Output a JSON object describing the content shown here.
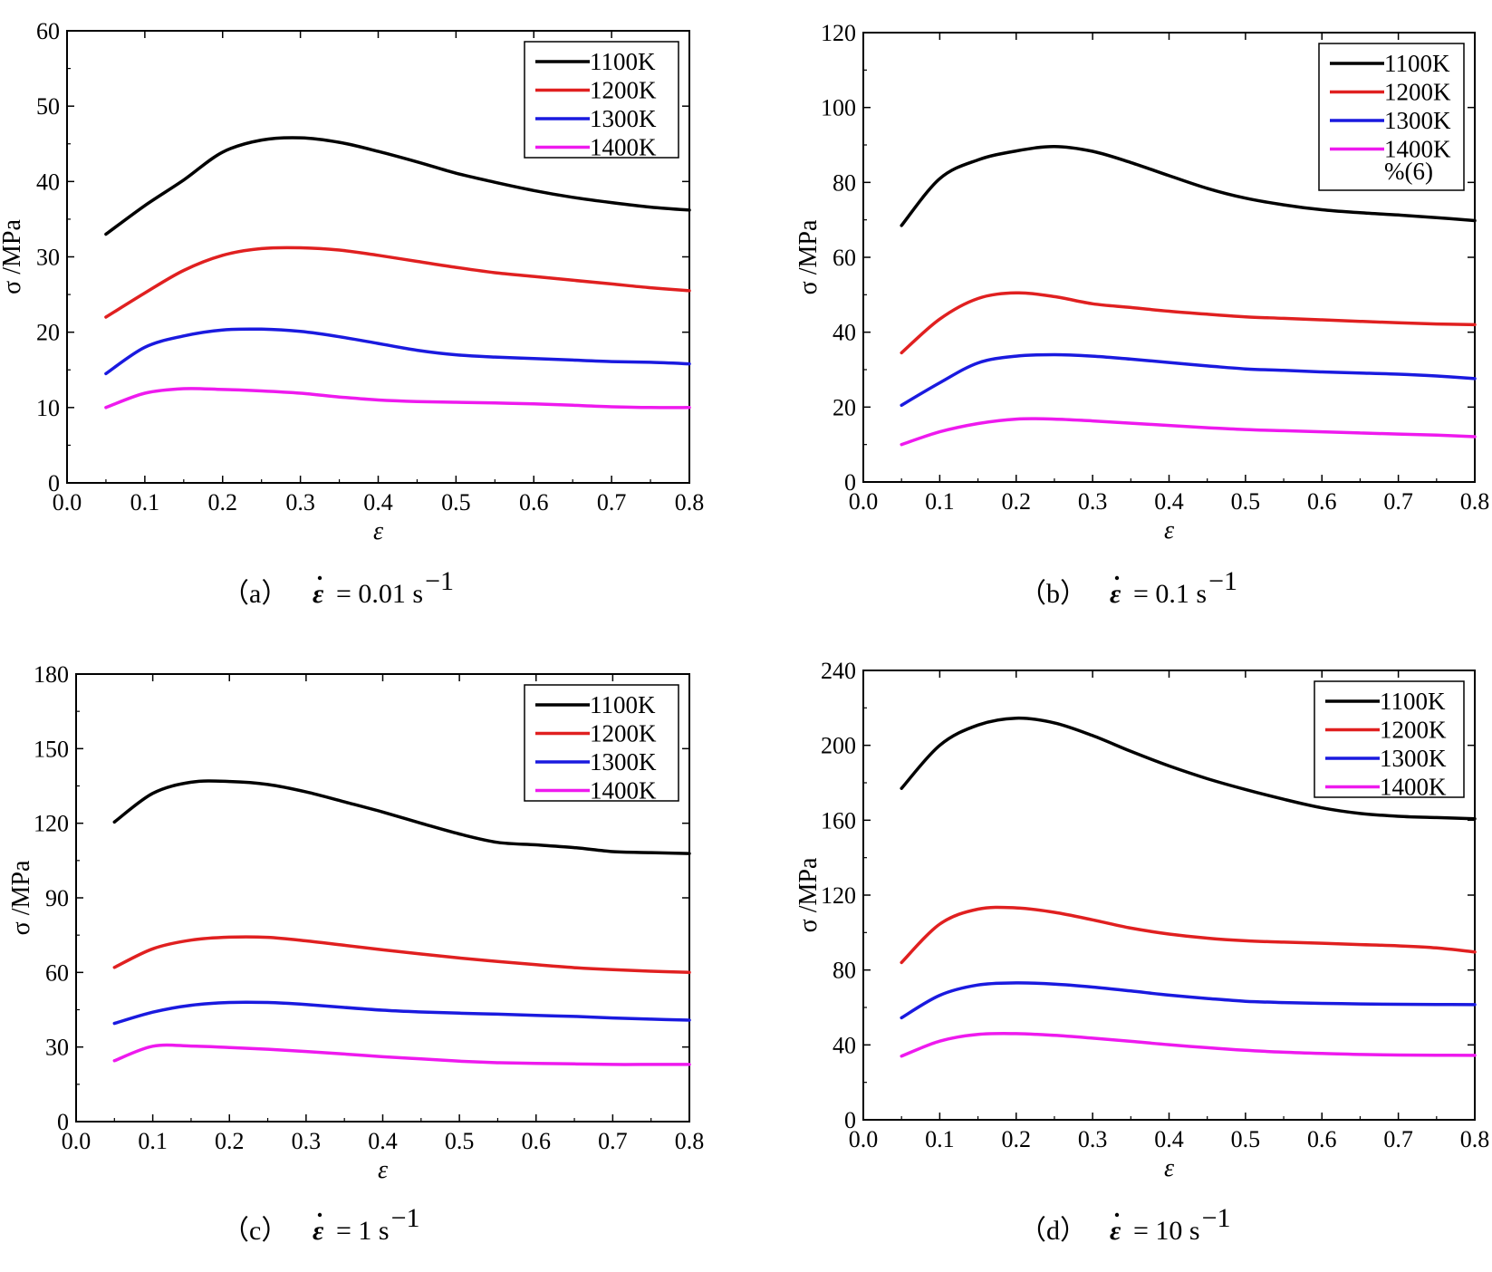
{
  "chart_data": [
    {
      "type": "line",
      "panel": "a",
      "caption": {
        "label": "（a）",
        "rate": "= 0.01 s",
        "exponent": "−1"
      },
      "xlabel": "ε",
      "ylabel": "σ /MPa",
      "xlim": [
        0.0,
        0.8
      ],
      "ylim": [
        0,
        60
      ],
      "xticks": [
        "0.0",
        "0.1",
        "0.2",
        "0.3",
        "0.4",
        "0.5",
        "0.6",
        "0.7",
        "0.8"
      ],
      "yticks": [
        "0",
        "10",
        "20",
        "30",
        "40",
        "50",
        "60"
      ],
      "legend": {
        "position": "top-right",
        "note": ""
      },
      "x": [
        0.05,
        0.1,
        0.15,
        0.2,
        0.25,
        0.3,
        0.35,
        0.4,
        0.45,
        0.5,
        0.55,
        0.6,
        0.65,
        0.7,
        0.75,
        0.8
      ],
      "series": [
        {
          "name": "1100K",
          "color": "#000000",
          "values": [
            33.0,
            36.8,
            40.2,
            43.9,
            45.5,
            45.8,
            45.2,
            44.0,
            42.6,
            41.1,
            39.9,
            38.8,
            37.9,
            37.2,
            36.6,
            36.2
          ]
        },
        {
          "name": "1200K",
          "color": "#e02020",
          "values": [
            22.0,
            25.2,
            28.2,
            30.2,
            31.1,
            31.2,
            30.9,
            30.2,
            29.4,
            28.6,
            27.9,
            27.4,
            26.9,
            26.4,
            25.9,
            25.5
          ]
        },
        {
          "name": "1300K",
          "color": "#1a1adf",
          "values": [
            14.5,
            18.0,
            19.5,
            20.3,
            20.4,
            20.1,
            19.4,
            18.5,
            17.6,
            17.0,
            16.7,
            16.5,
            16.3,
            16.1,
            16.0,
            15.8
          ]
        },
        {
          "name": "1400K",
          "color": "#ee1aee",
          "values": [
            10.0,
            11.9,
            12.5,
            12.4,
            12.2,
            11.9,
            11.4,
            11.0,
            10.8,
            10.7,
            10.6,
            10.5,
            10.3,
            10.1,
            10.0,
            10.0
          ]
        }
      ]
    },
    {
      "type": "line",
      "panel": "b",
      "caption": {
        "label": "（b）",
        "rate": "= 0.1 s",
        "exponent": "−1"
      },
      "xlabel": "ε",
      "ylabel": "σ /MPa",
      "xlim": [
        0.0,
        0.8
      ],
      "ylim": [
        0,
        120
      ],
      "xticks": [
        "0.0",
        "0.1",
        "0.2",
        "0.3",
        "0.4",
        "0.5",
        "0.6",
        "0.7",
        "0.8"
      ],
      "yticks": [
        "0",
        "20",
        "40",
        "60",
        "80",
        "100",
        "120"
      ],
      "legend": {
        "position": "top-right",
        "note": "%(6)"
      },
      "x": [
        0.05,
        0.1,
        0.15,
        0.2,
        0.25,
        0.3,
        0.35,
        0.4,
        0.45,
        0.5,
        0.55,
        0.6,
        0.65,
        0.7,
        0.75,
        0.8
      ],
      "series": [
        {
          "name": "1100K",
          "color": "#000000",
          "values": [
            68.5,
            81.0,
            86.0,
            88.4,
            89.6,
            88.3,
            85.3,
            81.8,
            78.4,
            75.8,
            74.0,
            72.7,
            71.9,
            71.3,
            70.6,
            69.8
          ]
        },
        {
          "name": "1200K",
          "color": "#e02020",
          "values": [
            34.5,
            43.5,
            49.0,
            50.5,
            49.5,
            47.6,
            46.6,
            45.6,
            44.8,
            44.1,
            43.7,
            43.3,
            42.9,
            42.5,
            42.2,
            42.0
          ]
        },
        {
          "name": "1300K",
          "color": "#1a1adf",
          "values": [
            20.5,
            26.5,
            31.8,
            33.6,
            34.0,
            33.6,
            32.8,
            31.9,
            31.0,
            30.2,
            29.8,
            29.4,
            29.1,
            28.8,
            28.3,
            27.6
          ]
        },
        {
          "name": "1400K",
          "color": "#ee1aee",
          "values": [
            10.0,
            13.4,
            15.6,
            16.8,
            16.8,
            16.3,
            15.7,
            15.1,
            14.5,
            14.0,
            13.7,
            13.4,
            13.1,
            12.8,
            12.5,
            12.1
          ]
        }
      ]
    },
    {
      "type": "line",
      "panel": "c",
      "caption": {
        "label": "（c）",
        "rate": "= 1 s",
        "exponent": "−1"
      },
      "xlabel": "ε",
      "ylabel": "σ /MPa",
      "xlim": [
        0.0,
        0.8
      ],
      "ylim": [
        0,
        180
      ],
      "xticks": [
        "0.0",
        "0.1",
        "0.2",
        "0.3",
        "0.4",
        "0.5",
        "0.6",
        "0.7",
        "0.8"
      ],
      "yticks": [
        "0",
        "30",
        "60",
        "90",
        "120",
        "150",
        "180"
      ],
      "legend": {
        "position": "top-right",
        "note": ""
      },
      "x": [
        0.05,
        0.1,
        0.15,
        0.2,
        0.25,
        0.3,
        0.35,
        0.4,
        0.45,
        0.5,
        0.55,
        0.6,
        0.65,
        0.7,
        0.75,
        0.8
      ],
      "series": [
        {
          "name": "1100K",
          "color": "#000000",
          "values": [
            120.5,
            132.0,
            136.5,
            136.8,
            135.6,
            132.6,
            128.6,
            124.5,
            120.0,
            115.7,
            112.3,
            111.3,
            110.2,
            108.6,
            108.2,
            107.8
          ]
        },
        {
          "name": "1200K",
          "color": "#e02020",
          "values": [
            62.0,
            69.5,
            73.0,
            74.2,
            74.1,
            72.7,
            70.9,
            69.1,
            67.4,
            65.8,
            64.4,
            63.1,
            61.9,
            61.1,
            60.5,
            60.0
          ]
        },
        {
          "name": "1300K",
          "color": "#1a1adf",
          "values": [
            39.5,
            44.0,
            46.8,
            47.9,
            47.9,
            47.1,
            45.9,
            44.8,
            44.1,
            43.6,
            43.2,
            42.7,
            42.3,
            41.7,
            41.2,
            40.8
          ]
        },
        {
          "name": "1400K",
          "color": "#ee1aee",
          "values": [
            24.5,
            30.3,
            30.4,
            29.8,
            29.1,
            28.2,
            27.2,
            26.1,
            25.2,
            24.3,
            23.7,
            23.4,
            23.2,
            23.0,
            23.0,
            23.0
          ]
        }
      ]
    },
    {
      "type": "line",
      "panel": "d",
      "caption": {
        "label": "（d）",
        "rate": "= 10 s",
        "exponent": "−1"
      },
      "xlabel": "ε",
      "ylabel": "σ /MPa",
      "xlim": [
        0.0,
        0.8
      ],
      "ylim": [
        0,
        240
      ],
      "xticks": [
        "0.0",
        "0.1",
        "0.2",
        "0.3",
        "0.4",
        "0.5",
        "0.6",
        "0.7",
        "0.8"
      ],
      "yticks": [
        "0",
        "40",
        "80",
        "120",
        "160",
        "200",
        "240"
      ],
      "legend": {
        "position": "top-right",
        "note": ""
      },
      "x": [
        0.05,
        0.1,
        0.15,
        0.2,
        0.25,
        0.3,
        0.35,
        0.4,
        0.45,
        0.5,
        0.55,
        0.6,
        0.65,
        0.7,
        0.75,
        0.8
      ],
      "series": [
        {
          "name": "1100K",
          "color": "#000000",
          "values": [
            177.0,
            200.0,
            210.8,
            214.5,
            212.0,
            205.2,
            196.8,
            189.0,
            182.2,
            176.4,
            171.2,
            166.6,
            163.6,
            162.1,
            161.4,
            160.8
          ]
        },
        {
          "name": "1200K",
          "color": "#e02020",
          "values": [
            84.0,
            104.5,
            112.5,
            113.2,
            110.8,
            106.8,
            102.4,
            99.2,
            97.0,
            95.6,
            94.9,
            94.3,
            93.6,
            92.9,
            91.8,
            89.6
          ]
        },
        {
          "name": "1300K",
          "color": "#1a1adf",
          "values": [
            54.5,
            66.5,
            72.0,
            73.1,
            72.5,
            70.9,
            68.8,
            66.6,
            64.8,
            63.3,
            62.6,
            62.2,
            61.9,
            61.7,
            61.6,
            61.5
          ]
        },
        {
          "name": "1400K",
          "color": "#ee1aee",
          "values": [
            34.0,
            42.0,
            45.6,
            46.0,
            45.1,
            43.6,
            41.9,
            40.1,
            38.5,
            37.1,
            36.1,
            35.4,
            34.9,
            34.6,
            34.5,
            34.4
          ]
        }
      ]
    }
  ]
}
